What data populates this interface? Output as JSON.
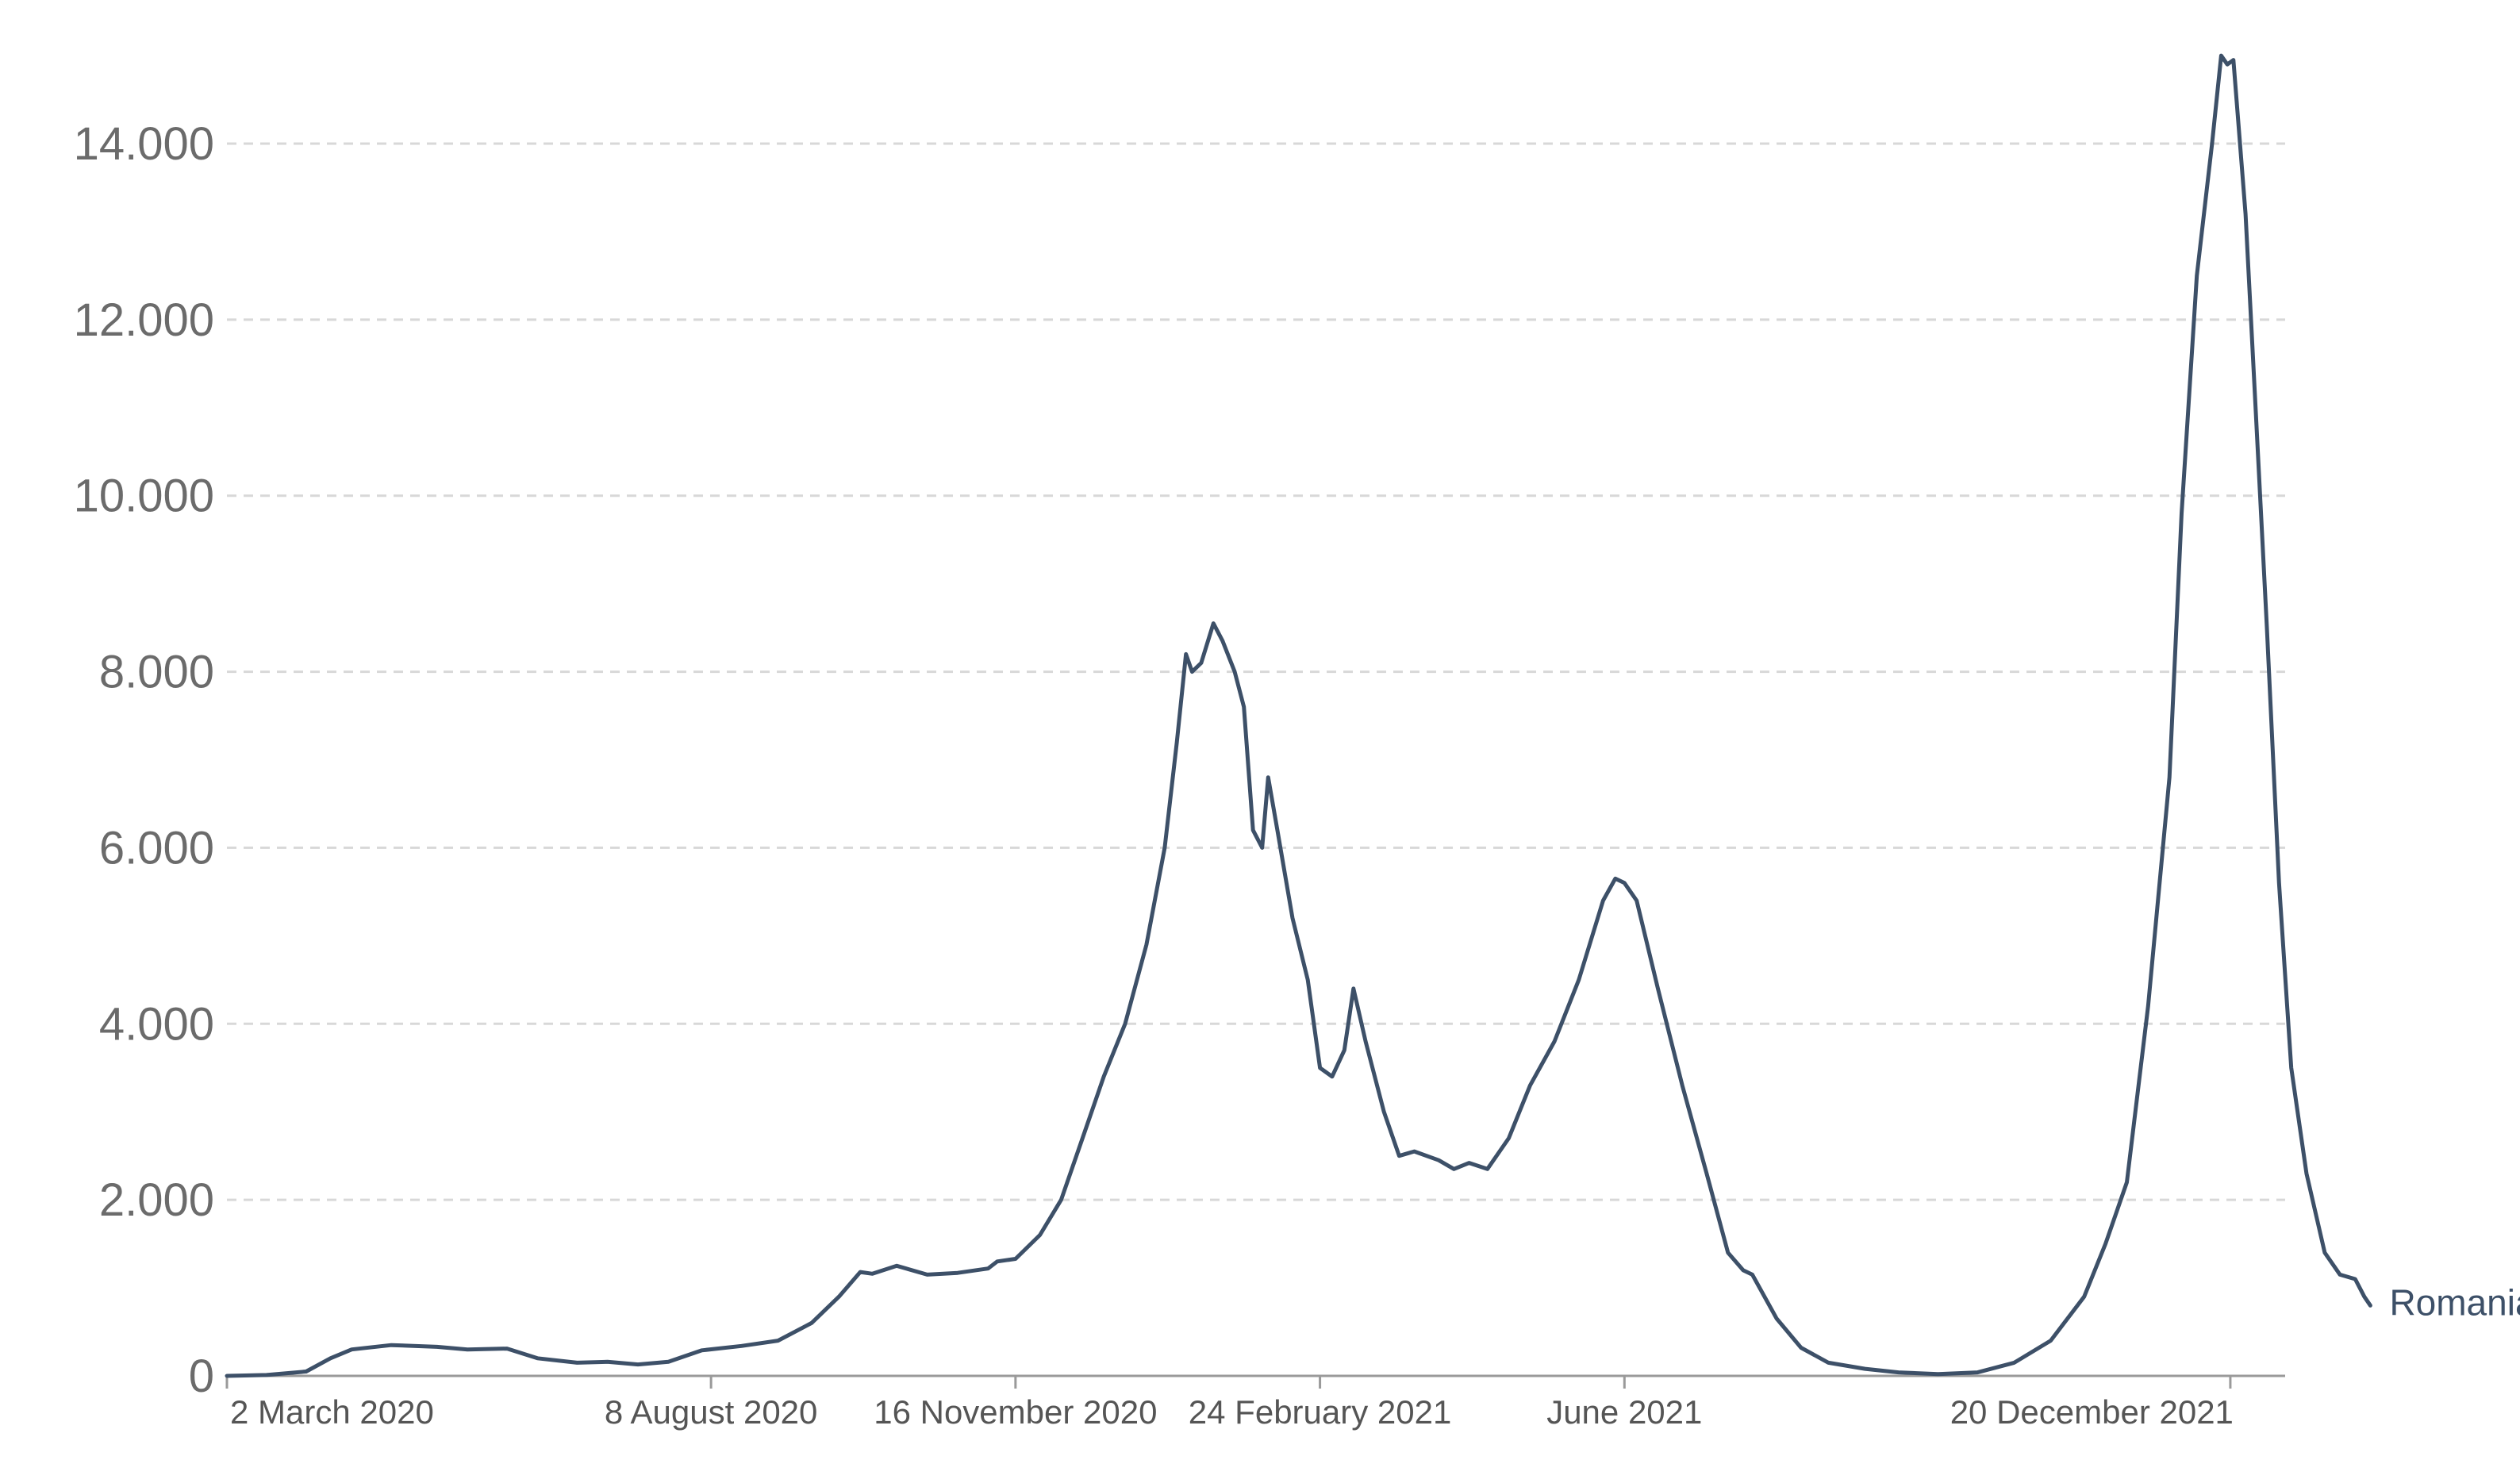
{
  "chart_data": {
    "type": "line",
    "title": "",
    "xlabel": "",
    "ylabel": "",
    "ylim": [
      0,
      14000
    ],
    "yticks": [
      0,
      2000,
      4000,
      6000,
      8000,
      10000,
      12000,
      14000
    ],
    "ytick_labels": [
      "0",
      "2.000",
      "4.000",
      "6.000",
      "8.000",
      "10.000",
      "12.000",
      "14.000"
    ],
    "xlim": [
      "2020-03-02",
      "2022-01-07"
    ],
    "xticks": [
      {
        "date": "2020-03-02",
        "label": "2 March 2020"
      },
      {
        "date": "2020-08-08",
        "label": "8 August 2020"
      },
      {
        "date": "2020-11-16",
        "label": "16 November 2020"
      },
      {
        "date": "2021-02-24",
        "label": "24 February 2021"
      },
      {
        "date": "2021-06-04",
        "label": "June 2021"
      },
      {
        "date": "2021-12-20",
        "label": "20 December 2021"
      }
    ],
    "grid": "horizontal dashed",
    "line_color": "#3d5068",
    "series": [
      {
        "name": "Romania",
        "points": [
          [
            "2020-03-02",
            0
          ],
          [
            "2020-03-15",
            10
          ],
          [
            "2020-03-28",
            50
          ],
          [
            "2020-04-05",
            200
          ],
          [
            "2020-04-12",
            300
          ],
          [
            "2020-04-25",
            350
          ],
          [
            "2020-05-10",
            330
          ],
          [
            "2020-05-20",
            300
          ],
          [
            "2020-06-02",
            310
          ],
          [
            "2020-06-12",
            200
          ],
          [
            "2020-06-25",
            150
          ],
          [
            "2020-07-05",
            160
          ],
          [
            "2020-07-15",
            130
          ],
          [
            "2020-07-25",
            160
          ],
          [
            "2020-08-05",
            290
          ],
          [
            "2020-08-18",
            340
          ],
          [
            "2020-08-30",
            400
          ],
          [
            "2020-09-10",
            600
          ],
          [
            "2020-09-19",
            900
          ],
          [
            "2020-09-26",
            1180
          ],
          [
            "2020-09-30",
            1160
          ],
          [
            "2020-10-08",
            1250
          ],
          [
            "2020-10-18",
            1150
          ],
          [
            "2020-10-28",
            1170
          ],
          [
            "2020-11-07",
            1220
          ],
          [
            "2020-11-10",
            1300
          ],
          [
            "2020-11-16",
            1330
          ],
          [
            "2020-11-24",
            1600
          ],
          [
            "2020-12-01",
            2000
          ],
          [
            "2020-12-08",
            2700
          ],
          [
            "2020-12-15",
            3400
          ],
          [
            "2020-12-22",
            4000
          ],
          [
            "2020-12-29",
            4900
          ],
          [
            "2021-01-04",
            6000
          ],
          [
            "2021-01-08",
            7200
          ],
          [
            "2021-01-11",
            8200
          ],
          [
            "2021-01-13",
            8000
          ],
          [
            "2021-01-16",
            8100
          ],
          [
            "2021-01-20",
            8550
          ],
          [
            "2021-01-23",
            8350
          ],
          [
            "2021-01-27",
            8000
          ],
          [
            "2021-01-30",
            7600
          ],
          [
            "2021-02-02",
            6200
          ],
          [
            "2021-02-05",
            6000
          ],
          [
            "2021-02-07",
            6800
          ],
          [
            "2021-02-10",
            6200
          ],
          [
            "2021-02-15",
            5200
          ],
          [
            "2021-02-20",
            4500
          ],
          [
            "2021-02-24",
            3500
          ],
          [
            "2021-02-28",
            3400
          ],
          [
            "2021-03-04",
            3700
          ],
          [
            "2021-03-07",
            4400
          ],
          [
            "2021-03-11",
            3800
          ],
          [
            "2021-03-17",
            3000
          ],
          [
            "2021-03-22",
            2500
          ],
          [
            "2021-03-27",
            2550
          ],
          [
            "2021-04-04",
            2450
          ],
          [
            "2021-04-09",
            2350
          ],
          [
            "2021-04-14",
            2420
          ],
          [
            "2021-04-20",
            2350
          ],
          [
            "2021-04-27",
            2700
          ],
          [
            "2021-05-04",
            3300
          ],
          [
            "2021-05-12",
            3800
          ],
          [
            "2021-05-20",
            4500
          ],
          [
            "2021-05-28",
            5400
          ],
          [
            "2021-06-01",
            5650
          ],
          [
            "2021-06-04",
            5600
          ],
          [
            "2021-06-08",
            5400
          ],
          [
            "2021-06-15",
            4400
          ],
          [
            "2021-06-23",
            3300
          ],
          [
            "2021-07-01",
            2300
          ],
          [
            "2021-07-08",
            1400
          ],
          [
            "2021-07-13",
            1200
          ],
          [
            "2021-07-16",
            1150
          ],
          [
            "2021-07-24",
            650
          ],
          [
            "2021-08-01",
            320
          ],
          [
            "2021-08-10",
            150
          ],
          [
            "2021-08-22",
            80
          ],
          [
            "2021-09-02",
            40
          ],
          [
            "2021-09-15",
            20
          ],
          [
            "2021-09-28",
            40
          ],
          [
            "2021-10-10",
            150
          ],
          [
            "2021-10-22",
            400
          ],
          [
            "2021-11-02",
            900
          ],
          [
            "2021-11-09",
            1500
          ],
          [
            "2021-11-16",
            2200
          ],
          [
            "2021-11-23",
            4200
          ],
          [
            "2021-11-30",
            6800
          ],
          [
            "2021-12-04",
            9800
          ],
          [
            "2021-12-09",
            12500
          ],
          [
            "2021-12-14",
            14000
          ],
          [
            "2021-12-17",
            15000
          ],
          [
            "2021-12-19",
            14900
          ],
          [
            "2021-12-21",
            14950
          ],
          [
            "2021-12-25",
            13200
          ],
          [
            "2021-12-28",
            11200
          ],
          [
            "2022-01-01",
            8500
          ],
          [
            "2022-01-05",
            5600
          ],
          [
            "2022-01-09",
            3500
          ],
          [
            "2022-01-14",
            2300
          ],
          [
            "2022-01-20",
            1400
          ],
          [
            "2022-01-25",
            1150
          ],
          [
            "2022-01-30",
            1100
          ],
          [
            "2022-02-02",
            900
          ],
          [
            "2022-02-04",
            800
          ]
        ]
      }
    ],
    "legend": "inline label at line end"
  }
}
